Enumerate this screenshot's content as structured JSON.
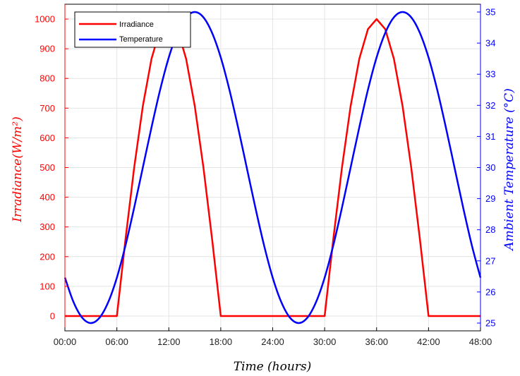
{
  "chart_data": {
    "type": "line",
    "xlabel": "Time (hours)",
    "ylabel_left": "Irradiance(W/m²)",
    "ylabel_right": "Ambient Temperature (°C)",
    "xlim": [
      0,
      48
    ],
    "ylim_left": [
      -50,
      1050
    ],
    "ylim_right": [
      24.75,
      35.25
    ],
    "x_ticks": [
      "00:00",
      "06:00",
      "12:00",
      "18:00",
      "24:00",
      "30:00",
      "36:00",
      "42:00",
      "48:00"
    ],
    "y_ticks_left": [
      "0",
      "100",
      "200",
      "300",
      "400",
      "500",
      "600",
      "700",
      "800",
      "900",
      "1000"
    ],
    "y_ticks_right": [
      "25",
      "26",
      "27",
      "28",
      "29",
      "30",
      "31",
      "32",
      "33",
      "34",
      "35"
    ],
    "grid": true,
    "legend_position": "top-left",
    "series": [
      {
        "name": "Irradiance",
        "axis": "left",
        "color": "#ff0000",
        "x": [
          0,
          6,
          7,
          8,
          9,
          10,
          11,
          12,
          13,
          14,
          15,
          16,
          17,
          18,
          24,
          30,
          31,
          32,
          33,
          34,
          35,
          36,
          37,
          38,
          39,
          40,
          41,
          42,
          48
        ],
        "y": [
          0,
          0,
          259,
          500,
          707,
          866,
          966,
          1000,
          966,
          866,
          707,
          500,
          259,
          0,
          0,
          0,
          259,
          500,
          707,
          866,
          966,
          1000,
          966,
          866,
          707,
          500,
          259,
          0,
          0
        ]
      },
      {
        "name": "Temperature",
        "axis": "right",
        "color": "#0000ff",
        "x": [
          0,
          1,
          2,
          3,
          4,
          5,
          6,
          7,
          8,
          9,
          10,
          11,
          12,
          13,
          14,
          15,
          16,
          17,
          18,
          19,
          20,
          21,
          22,
          23,
          24,
          25,
          26,
          27,
          28,
          29,
          30,
          31,
          32,
          33,
          34,
          35,
          36,
          37,
          38,
          39,
          40,
          41,
          42,
          43,
          44,
          45,
          46,
          47,
          48
        ],
        "y": [
          26.46,
          25.67,
          25.17,
          25.0,
          25.17,
          25.67,
          26.46,
          27.5,
          28.71,
          30.0,
          31.29,
          32.5,
          33.54,
          34.33,
          34.83,
          35.0,
          34.83,
          34.33,
          33.54,
          32.5,
          31.29,
          30.0,
          28.71,
          27.5,
          26.46,
          25.67,
          25.17,
          25.0,
          25.17,
          25.67,
          26.46,
          27.5,
          28.71,
          30.0,
          31.29,
          32.5,
          33.54,
          34.33,
          34.83,
          35.0,
          34.83,
          34.33,
          33.54,
          32.5,
          31.29,
          30.0,
          28.71,
          27.5,
          26.46
        ]
      }
    ]
  }
}
